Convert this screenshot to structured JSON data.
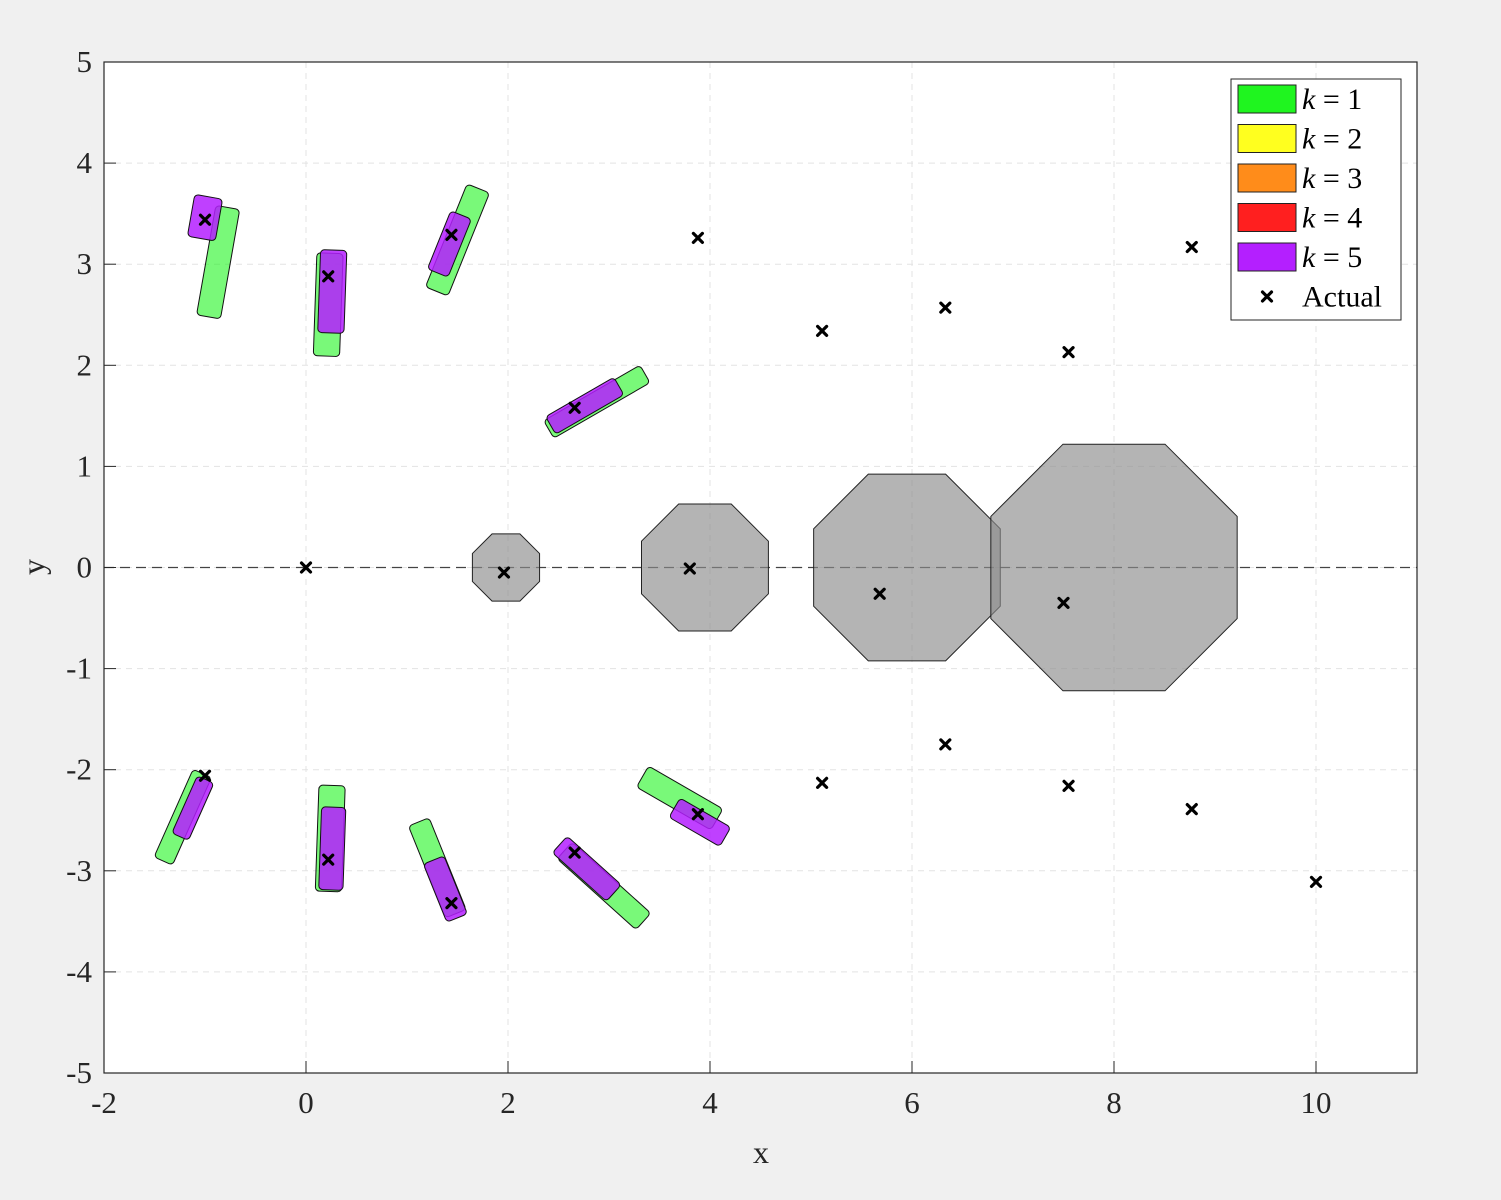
{
  "chart_data": {
    "type": "scatter",
    "xlabel": "x",
    "ylabel": "y",
    "xlim": [
      -2,
      11
    ],
    "ylim": [
      -5,
      5
    ],
    "x_ticks": [
      -2,
      0,
      2,
      4,
      6,
      8,
      10
    ],
    "y_ticks": [
      -5,
      -4,
      -3,
      -2,
      -1,
      0,
      1,
      2,
      3,
      4,
      5
    ],
    "grid": true,
    "legend_placement": "top-right",
    "legend": [
      {
        "label": "k = 1",
        "var": "k",
        "op": "=",
        "num": "1",
        "color": "#1ff51f"
      },
      {
        "label": "k = 2",
        "var": "k",
        "op": "=",
        "num": "2",
        "color": "#ffff1f"
      },
      {
        "label": "k = 3",
        "var": "k",
        "op": "=",
        "num": "3",
        "color": "#ff8c1a"
      },
      {
        "label": "k = 4",
        "var": "k",
        "op": "=",
        "num": "4",
        "color": "#ff1f1f"
      },
      {
        "label": "k = 5",
        "var": "k",
        "op": "=",
        "num": "5",
        "color": "#b41fff"
      },
      {
        "label": "Actual",
        "marker": "x"
      }
    ],
    "reference_line": {
      "y": 0,
      "style": "dashed"
    },
    "actual_points": [
      [
        -1.0,
        3.44
      ],
      [
        0.22,
        2.88
      ],
      [
        1.44,
        3.29
      ],
      [
        2.66,
        1.58
      ],
      [
        3.88,
        3.26
      ],
      [
        5.11,
        2.34
      ],
      [
        6.33,
        2.57
      ],
      [
        7.55,
        2.13
      ],
      [
        8.77,
        3.17
      ],
      [
        0.0,
        0.0
      ],
      [
        1.96,
        -0.05
      ],
      [
        3.8,
        -0.01
      ],
      [
        5.68,
        -0.26
      ],
      [
        7.5,
        -0.35
      ],
      [
        -1.0,
        -2.06
      ],
      [
        0.22,
        -2.89
      ],
      [
        1.44,
        -3.32
      ],
      [
        2.66,
        -2.82
      ],
      [
        3.88,
        -2.44
      ],
      [
        5.11,
        -2.13
      ],
      [
        6.33,
        -1.75
      ],
      [
        7.55,
        -2.16
      ],
      [
        8.77,
        -2.39
      ],
      [
        10.0,
        -3.11
      ]
    ],
    "obstacles": [
      {
        "center": [
          1.98,
          0.0
        ],
        "radius": 0.36
      },
      {
        "center": [
          3.95,
          0.0
        ],
        "radius": 0.68
      },
      {
        "center": [
          5.95,
          0.0
        ],
        "radius": 1.0
      },
      {
        "center": [
          8.0,
          0.0
        ],
        "radius": 1.32
      }
    ],
    "estimate_sets": [
      {
        "k": 1,
        "center": [
          -0.87,
          3.02
        ],
        "length": 1.1,
        "width": 0.24,
        "angle": 80
      },
      {
        "k": 1,
        "center": [
          0.22,
          2.6
        ],
        "length": 1.02,
        "width": 0.26,
        "angle": 88
      },
      {
        "k": 1,
        "center": [
          1.5,
          3.24
        ],
        "length": 1.1,
        "width": 0.24,
        "angle": 68
      },
      {
        "k": 1,
        "center": [
          2.88,
          1.64
        ],
        "length": 1.1,
        "width": 0.2,
        "angle": 30
      },
      {
        "k": 1,
        "center": [
          -1.22,
          -2.47
        ],
        "length": 0.95,
        "width": 0.2,
        "angle": 66
      },
      {
        "k": 1,
        "center": [
          0.24,
          -2.68
        ],
        "length": 1.05,
        "width": 0.26,
        "angle": 88
      },
      {
        "k": 1,
        "center": [
          1.3,
          -2.97
        ],
        "length": 0.98,
        "width": 0.22,
        "angle": 112
      },
      {
        "k": 1,
        "center": [
          2.95,
          -3.15
        ],
        "length": 1.05,
        "width": 0.22,
        "angle": 138
      },
      {
        "k": 1,
        "center": [
          3.7,
          -2.28
        ],
        "length": 0.85,
        "width": 0.24,
        "angle": 150
      },
      {
        "k": 5,
        "center": [
          -1.0,
          3.46
        ],
        "length": 0.42,
        "width": 0.28,
        "angle": 80
      },
      {
        "k": 5,
        "center": [
          0.26,
          2.73
        ],
        "length": 0.82,
        "width": 0.26,
        "angle": 88
      },
      {
        "k": 5,
        "center": [
          1.42,
          3.2
        ],
        "length": 0.62,
        "width": 0.22,
        "angle": 68
      },
      {
        "k": 5,
        "center": [
          2.76,
          1.6
        ],
        "length": 0.78,
        "width": 0.2,
        "angle": 30
      },
      {
        "k": 5,
        "center": [
          -1.12,
          -2.38
        ],
        "length": 0.62,
        "width": 0.18,
        "angle": 66
      },
      {
        "k": 5,
        "center": [
          0.26,
          -2.78
        ],
        "length": 0.82,
        "width": 0.24,
        "angle": 88
      },
      {
        "k": 5,
        "center": [
          1.38,
          -3.18
        ],
        "length": 0.62,
        "width": 0.22,
        "angle": 112
      },
      {
        "k": 5,
        "center": [
          2.78,
          -2.98
        ],
        "length": 0.72,
        "width": 0.22,
        "angle": 138
      },
      {
        "k": 5,
        "center": [
          3.9,
          -2.52
        ],
        "length": 0.58,
        "width": 0.22,
        "angle": 150
      }
    ]
  }
}
